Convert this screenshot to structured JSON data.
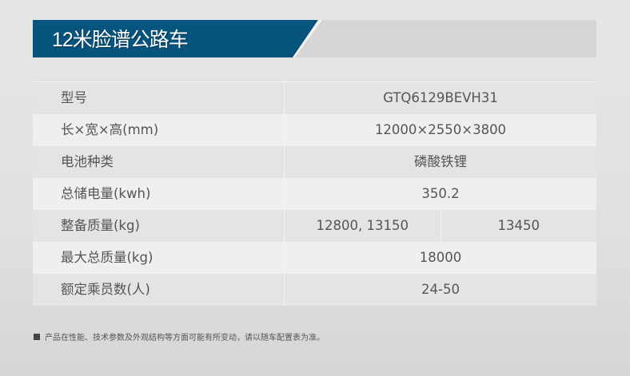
{
  "title": "12米脸谱公路车",
  "colors": {
    "banner": "#07547e"
  },
  "specs": [
    {
      "label": "型号",
      "values": [
        "GTQ6129BEVH31"
      ]
    },
    {
      "label": "长×宽×高(mm)",
      "values": [
        "12000×2550×3800"
      ]
    },
    {
      "label": "电池种类",
      "values": [
        "磷酸铁锂"
      ]
    },
    {
      "label": "总储电量(kwh)",
      "values": [
        "350.2"
      ]
    },
    {
      "label": "整备质量(kg)",
      "values": [
        "12800, 13150",
        "13450"
      ]
    },
    {
      "label": "最大总质量(kg)",
      "values": [
        "18000"
      ]
    },
    {
      "label": "额定乘员数(人)",
      "values": [
        "24-50"
      ]
    }
  ],
  "note": "产品在性能、技术参数及外观结构等方面可能有所变动，请以随车配置表为准。"
}
